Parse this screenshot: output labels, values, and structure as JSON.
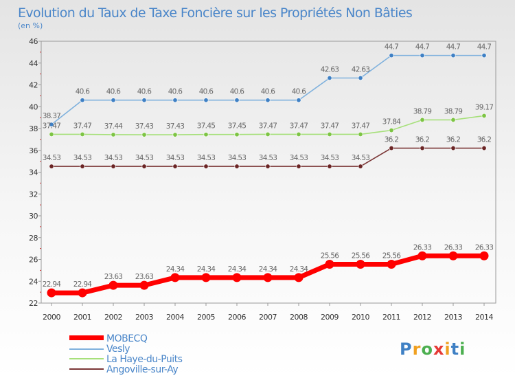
{
  "chart_data": {
    "type": "line",
    "title": "Evolution du Taux de Taxe Foncière sur les Propriétés Non Bâties",
    "subtitle": "(en %)",
    "xlabel": "",
    "ylabel": "",
    "x": [
      "2000",
      "2001",
      "2002",
      "2003",
      "2004",
      "2005",
      "2006",
      "2007",
      "2008",
      "2009",
      "2010",
      "2011",
      "2012",
      "2013",
      "2014"
    ],
    "ylim": [
      22,
      46
    ],
    "yticks": [
      "22",
      "24",
      "26",
      "28",
      "30",
      "32",
      "34",
      "36",
      "38",
      "40",
      "42",
      "44",
      "46"
    ],
    "grid": false,
    "legend_position": "bottom-left",
    "series": [
      {
        "name": "MOBECQ",
        "color": "#ff0000",
        "highlight": true,
        "values": [
          22.94,
          22.94,
          23.63,
          23.63,
          24.34,
          24.34,
          24.34,
          24.34,
          24.34,
          25.56,
          25.56,
          25.56,
          26.33,
          26.33,
          26.33
        ],
        "labels": [
          "22.94",
          "22.94",
          "23.63",
          "23.63",
          "24.34",
          "24.34",
          "24.34",
          "24.34",
          "24.34",
          "25.56",
          "25.56",
          "25.56",
          "26.33",
          "26.33",
          "26.33"
        ]
      },
      {
        "name": "Vesly",
        "color": "#7fb1dd",
        "point_color": "#3f80c4",
        "highlight": false,
        "values": [
          38.37,
          40.6,
          40.6,
          40.6,
          40.6,
          40.6,
          40.6,
          40.6,
          40.6,
          42.63,
          42.63,
          44.7,
          44.7,
          44.7,
          44.7
        ],
        "labels": [
          "38.37",
          "40.6",
          "40.6",
          "40.6",
          "40.6",
          "40.6",
          "40.6",
          "40.6",
          "40.6",
          "42.63",
          "42.63",
          "44.7",
          "44.7",
          "44.7",
          "44.7"
        ]
      },
      {
        "name": "La Haye-du-Puits",
        "color": "#a6e07a",
        "point_color": "#7dc444",
        "highlight": false,
        "values": [
          37.47,
          37.47,
          37.44,
          37.43,
          37.43,
          37.45,
          37.45,
          37.47,
          37.47,
          37.47,
          37.47,
          37.84,
          38.79,
          38.79,
          39.17
        ],
        "labels": [
          "37.47",
          "37.47",
          "37.44",
          "37.43",
          "37.43",
          "37.45",
          "37.45",
          "37.47",
          "37.47",
          "37.47",
          "37.47",
          "37.84",
          "38.79",
          "38.79",
          "39.17"
        ]
      },
      {
        "name": "Angoville-sur-Ay",
        "color": "#7a3535",
        "point_color": "#6a2424",
        "highlight": false,
        "values": [
          34.53,
          34.53,
          34.53,
          34.53,
          34.53,
          34.53,
          34.53,
          34.53,
          34.53,
          34.53,
          34.53,
          36.2,
          36.2,
          36.2,
          36.2
        ],
        "labels": [
          "34.53",
          "34.53",
          "34.53",
          "34.53",
          "34.53",
          "34.53",
          "34.53",
          "34.53",
          "34.53",
          "34.53",
          "34.53",
          "36.2",
          "36.2",
          "36.2",
          "36.2"
        ]
      }
    ]
  },
  "legend": {
    "items": [
      {
        "label": "MOBECQ",
        "color": "#ff0000"
      },
      {
        "label": "Vesly",
        "color": "#7fb1dd"
      },
      {
        "label": "La Haye-du-Puits",
        "color": "#a6e07a"
      },
      {
        "label": "Angoville-sur-Ay",
        "color": "#7a3535"
      }
    ]
  },
  "branding": {
    "logo_text": "Proxiti",
    "logo_colors": [
      "#3f80c4",
      "#f0a020",
      "#4caf50",
      "#e53935",
      "#f0a020",
      "#3f80c4",
      "#4caf50"
    ]
  }
}
